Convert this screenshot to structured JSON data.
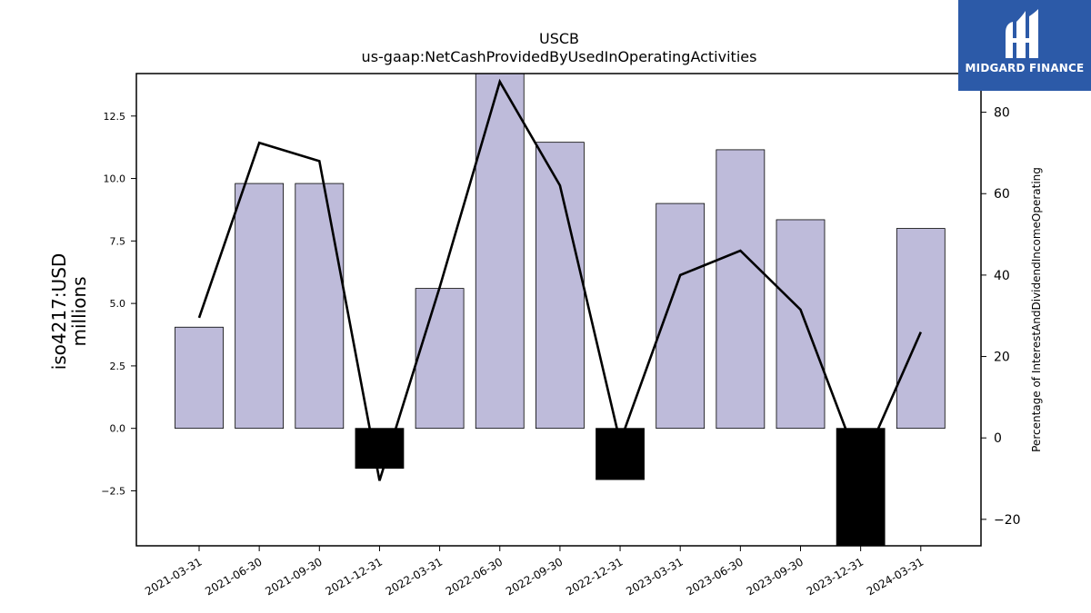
{
  "brand": {
    "name": "MIDGARD FINANCE",
    "bg_color": "#2c5aa8",
    "icon": "midgard-logo-icon"
  },
  "chart_data": {
    "type": "bar",
    "title": "USCB",
    "subtitle": "us-gaap:NetCashProvidedByUsedInOperatingActivities",
    "ylabel": "iso4217:USD",
    "ylabel_unit": "millions",
    "y2label": "Percentage of InterestAndDividendIncomeOperating",
    "categories": [
      "2021-03-31",
      "2021-06-30",
      "2021-09-30",
      "2021-12-31",
      "2022-03-31",
      "2022-06-30",
      "2022-09-30",
      "2022-12-31",
      "2023-03-31",
      "2023-06-30",
      "2023-09-30",
      "2023-12-31",
      "2024-03-31"
    ],
    "series": [
      {
        "type": "bar",
        "axis": "left",
        "values": [
          4.05,
          9.8,
          9.8,
          -1.6,
          5.6,
          14.2,
          11.45,
          -2.05,
          9.0,
          11.15,
          8.35,
          -4.7,
          8.0
        ],
        "color_positive": "#bebbda",
        "color_negative": "#000000"
      },
      {
        "type": "line",
        "axis": "right",
        "values": [
          29.5,
          72.5,
          68.0,
          -10.5,
          37.0,
          87.5,
          62.0,
          -1.0,
          40.0,
          46.0,
          31.5,
          -7.5,
          26.0
        ],
        "color": "#000000"
      }
    ],
    "ylim": [
      -4.7,
      14.2
    ],
    "yticks": [
      -2.5,
      0.0,
      2.5,
      5.0,
      7.5,
      10.0,
      12.5
    ],
    "y2lim": [
      -26.5,
      89.5
    ],
    "y2ticks": [
      -20,
      0,
      20,
      40,
      60,
      80
    ],
    "grid": false,
    "legend": "none"
  }
}
